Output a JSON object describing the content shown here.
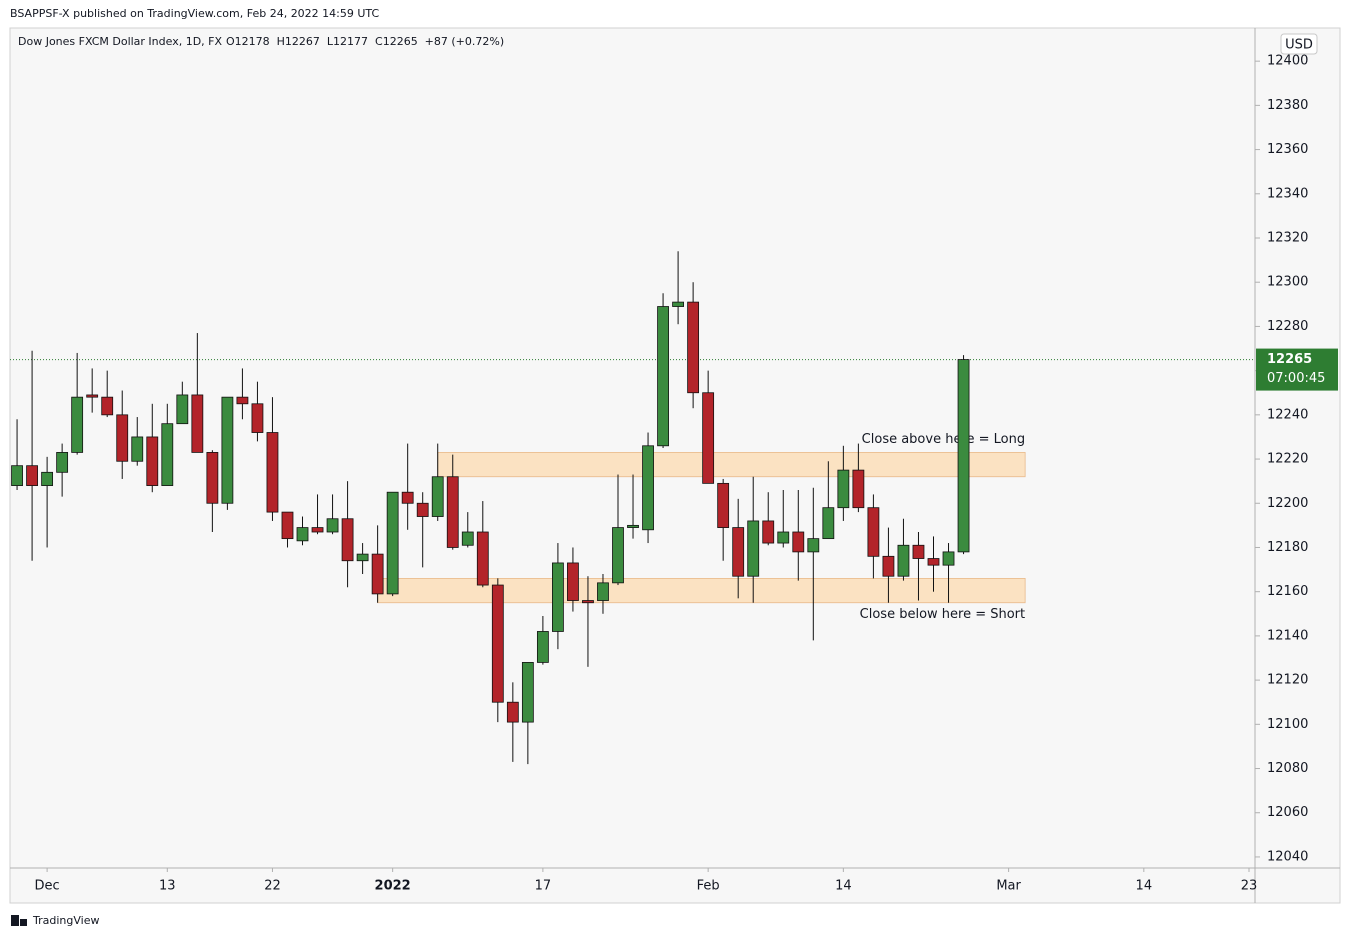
{
  "header": {
    "publisher": "BSAPPSF-X published on TradingView.com, Feb 24, 2022 14:59 UTC",
    "footer": "TradingView"
  },
  "chart_data": {
    "type": "candlestick",
    "title": "Dow Jones FXCM Dollar Index, 1D, FX",
    "legend_ohlc": "O12178  H12267  L12177  C12265  +87 (+0.72%)",
    "currency": "USD",
    "up_color": "#3b8b3f",
    "down_color": "#b3242a",
    "open": [
      12208,
      12217,
      12208,
      12214,
      12223,
      12249,
      12248,
      12240,
      12219,
      12230,
      12208,
      12236,
      12249,
      12223,
      12200,
      12248,
      12245,
      12232,
      12196,
      12183,
      12189,
      12187,
      12193,
      12174,
      12177,
      12159,
      12205,
      12200,
      12194,
      12212,
      12181,
      12187,
      12163,
      12110,
      12101,
      12128,
      12142,
      12173,
      12156,
      12156,
      12164,
      12189,
      12188,
      12226,
      12289,
      12291,
      12250,
      12209,
      12189,
      12167,
      12192,
      12182,
      12187,
      12178,
      12184,
      12198,
      12215,
      12198,
      12176,
      12167,
      12181,
      12175,
      12172,
      12178
    ],
    "high": [
      12238,
      12269,
      12221,
      12227,
      12268,
      12261,
      12260,
      12251,
      12239,
      12245,
      12245,
      12255,
      12277,
      12224,
      12248,
      12261,
      12255,
      12248,
      12196,
      12194,
      12204,
      12204,
      12210,
      12182,
      12190,
      12205,
      12227,
      12205,
      12227,
      12222,
      12196,
      12201,
      12166,
      12119,
      12128,
      12149,
      12182,
      12180,
      12167,
      12168,
      12213,
      12213,
      12232,
      12295,
      12314,
      12300,
      12260,
      12211,
      12202,
      12212,
      12205,
      12206,
      12206,
      12207,
      12219,
      12226,
      12227,
      12204,
      12189,
      12193,
      12187,
      12185,
      12182,
      12267
    ],
    "low": [
      12206,
      12174,
      12180,
      12203,
      12222,
      12241,
      12239,
      12211,
      12217,
      12205,
      12208,
      12236,
      12223,
      12187,
      12197,
      12238,
      12228,
      12192,
      12180,
      12181,
      12186,
      12186,
      12162,
      12168,
      12155,
      12158,
      12188,
      12171,
      12192,
      12179,
      12180,
      12162,
      12101,
      12083,
      12082,
      12127,
      12134,
      12151,
      12126,
      12150,
      12163,
      12184,
      12182,
      12225,
      12281,
      12243,
      12209,
      12174,
      12157,
      12155,
      12181,
      12180,
      12165,
      12138,
      12184,
      12192,
      12196,
      12166,
      12155,
      12165,
      12156,
      12160,
      12155,
      12177
    ],
    "close": [
      12217,
      12208,
      12214,
      12223,
      12248,
      12248,
      12240,
      12219,
      12230,
      12208,
      12236,
      12249,
      12223,
      12200,
      12248,
      12245,
      12232,
      12196,
      12184,
      12189,
      12187,
      12193,
      12174,
      12177,
      12159,
      12205,
      12200,
      12194,
      12212,
      12180,
      12187,
      12163,
      12110,
      12101,
      12128,
      12142,
      12173,
      12156,
      12155,
      12164,
      12189,
      12190,
      12226,
      12289,
      12291,
      12250,
      12209,
      12189,
      12167,
      12192,
      12182,
      12187,
      12178,
      12184,
      12198,
      12215,
      12198,
      12176,
      12167,
      12181,
      12175,
      12172,
      12178,
      12265
    ],
    "last_price": 12265,
    "countdown": "07:00:45",
    "zones": [
      {
        "low": 12212,
        "high": 12223,
        "x_start": 28,
        "x_end": 67.1,
        "label": "Close above here = Long",
        "label_side": "above"
      },
      {
        "low": 12155,
        "high": 12166,
        "x_start": 24,
        "x_end": 67.1,
        "label": "Close below here = Short",
        "label_side": "below"
      }
    ],
    "zone_color": "#fbe2c2",
    "xlim": [
      -0.47,
      82.4
    ],
    "xticks": [
      {
        "value": 2,
        "label": "Dec"
      },
      10,
      17,
      {
        "value": 25,
        "label": "2022"
      },
      35,
      {
        "value": 46,
        "label": "Feb"
      },
      55,
      {
        "value": 66,
        "label": "Mar"
      },
      75,
      82
    ],
    "xtick_labels": [
      null,
      "13",
      "22",
      null,
      "17",
      null,
      "14",
      null,
      "14",
      "23"
    ],
    "ylim": [
      12035,
      12415
    ],
    "yticks": [
      12040,
      12060,
      12080,
      12100,
      12120,
      12140,
      12160,
      12180,
      12200,
      12220,
      12240,
      12260,
      12280,
      12300,
      12320,
      12340,
      12360,
      12380,
      12400
    ]
  }
}
